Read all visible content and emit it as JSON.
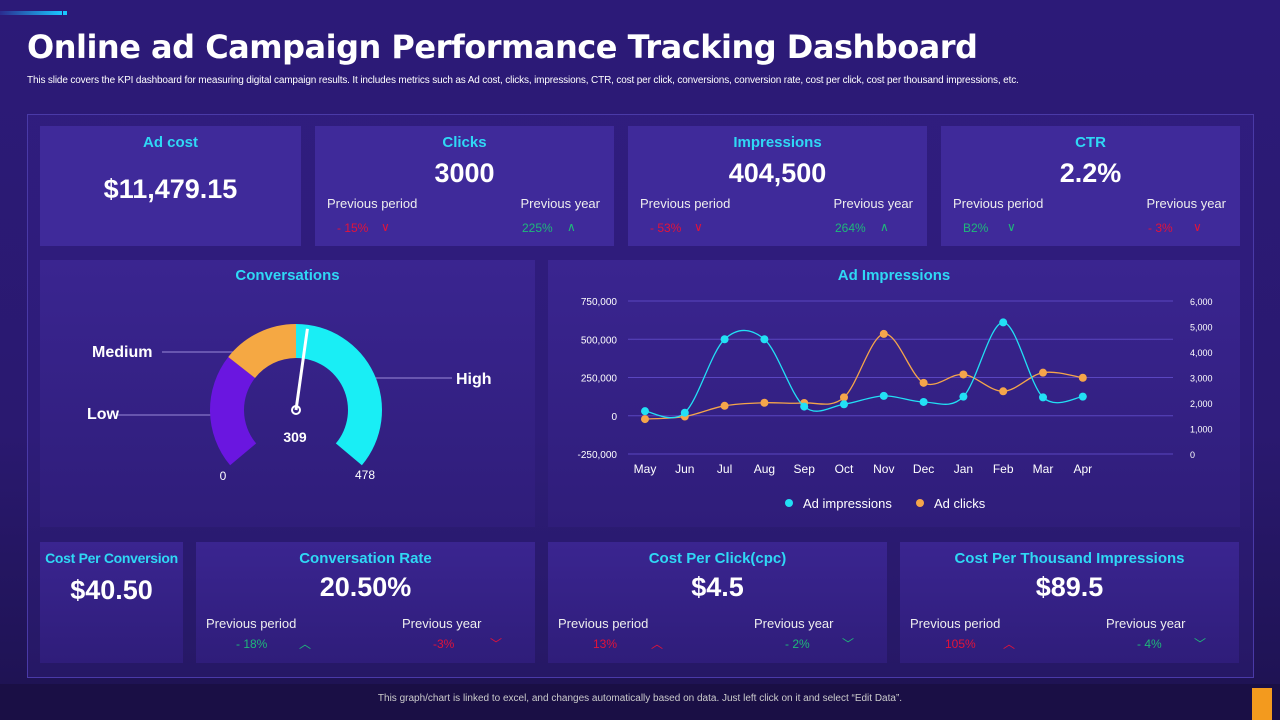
{
  "title": "Online ad Campaign Performance Tracking Dashboard",
  "subtitle": "This slide covers the KPI dashboard for measuring digital campaign results. It includes metrics such as Ad cost, clicks, impressions, CTR,  cost per click, conversions, conversion rate, cost per click, cost per thousand impressions, etc.",
  "ad_cost": {
    "label": "Ad cost",
    "value": "$11,479.15"
  },
  "kpis": [
    {
      "label": "Clicks",
      "value": "3000",
      "prev_period_label": "Previous period",
      "prev_period": "- 15%",
      "prev_period_dir": "down",
      "prev_year_label": "Previous year",
      "prev_year": "225%",
      "prev_year_dir": "up"
    },
    {
      "label": "Impressions",
      "value": "404,500",
      "prev_period_label": "Previous period",
      "prev_period": "- 53%",
      "prev_period_dir": "down",
      "prev_year_label": "Previous year",
      "prev_year": "264%",
      "prev_year_dir": "up"
    },
    {
      "label": "CTR",
      "value": "2.2%",
      "prev_period_label": "Previous period",
      "prev_period": "B2%",
      "prev_period_dir": "down-green",
      "prev_year_label": "Previous year",
      "prev_year": "- 3%",
      "prev_year_dir": "down"
    }
  ],
  "gauge": {
    "title": "Conversations",
    "value": "309",
    "min": "0",
    "max": "478",
    "labels": {
      "low": "Low",
      "medium": "Medium",
      "high": "High"
    },
    "value_num": 309,
    "max_num": 478
  },
  "chart_data": {
    "type": "line",
    "title": "Ad Impressions",
    "categories": [
      "May",
      "Jun",
      "Jul",
      "Aug",
      "Sep",
      "Oct",
      "Nov",
      "Dec",
      "Jan",
      "Feb",
      "Mar",
      "Apr"
    ],
    "y_left": {
      "range": [
        -250000,
        750000
      ],
      "ticks": [
        "-250,000",
        "0",
        "250,000",
        "500,000",
        "750,000"
      ]
    },
    "y_right": {
      "range": [
        0,
        6000
      ],
      "ticks": [
        "0",
        "1,000",
        "2,000",
        "3,000",
        "4,000",
        "5,000",
        "6,000"
      ]
    },
    "series": [
      {
        "name": "Ad impressions",
        "axis": "left",
        "color": "#22e0f5",
        "values": [
          30000,
          20000,
          500000,
          500000,
          60000,
          75000,
          130000,
          90000,
          125000,
          610000,
          120000,
          125000
        ]
      },
      {
        "name": "Ad clicks",
        "axis": "right",
        "color": "#f5a54a",
        "values": [
          1370,
          1470,
          1890,
          2010,
          2000,
          2220,
          4710,
          2790,
          3120,
          2460,
          3190,
          2990
        ]
      }
    ],
    "legend": "bottom",
    "grid": true
  },
  "cost_per_conversion": {
    "label": "Cost Per Conversion",
    "value": "$40.50"
  },
  "bottom_kpis": [
    {
      "label": "Conversation Rate",
      "value": "20.50%",
      "prev_period_label": "Previous period",
      "prev_period": "- 18%",
      "pp_color": "green",
      "pp_dir": "up",
      "prev_year_label": "Previous year",
      "prev_year": "-3%",
      "py_color": "red",
      "py_dir": "down"
    },
    {
      "label": "Cost Per Click(cpc)",
      "value": "$4.5",
      "prev_period_label": "Previous period",
      "prev_period": "13%",
      "pp_color": "red",
      "pp_dir": "up",
      "prev_year_label": "Previous year",
      "prev_year": "- 2%",
      "py_color": "green",
      "py_dir": "down"
    },
    {
      "label": "Cost Per Thousand Impressions",
      "value": "$89.5",
      "prev_period_label": "Previous period",
      "prev_period": "105%",
      "pp_color": "red",
      "pp_dir": "up",
      "prev_year_label": "Previous year",
      "prev_year": "- 4%",
      "py_color": "green",
      "py_dir": "down"
    }
  ],
  "footer": "This graph/chart is linked to excel, and changes automatically based on data. Just left click on it and select “Edit Data”."
}
